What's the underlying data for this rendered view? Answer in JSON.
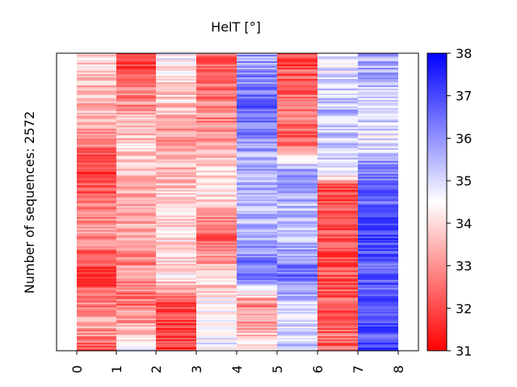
{
  "chart_data": {
    "type": "heatmap",
    "title": "HelT [°]",
    "ylabel": "Number of sequences: 2572",
    "xlabel": "",
    "x_ticks": [
      "0",
      "1",
      "2",
      "3",
      "4",
      "5",
      "6",
      "7",
      "8"
    ],
    "colorbar": {
      "ticks": [
        "38",
        "37",
        "36",
        "35",
        "34",
        "33",
        "32",
        "31"
      ],
      "range": [
        31,
        38
      ],
      "colormap": "bwr_r",
      "low_color": "#ff0000",
      "mid_color": "#ffffff",
      "high_color": "#0000ff"
    },
    "column_trends": [
      [
        [
          0,
          33.8
        ],
        [
          0.25,
          33.3
        ],
        [
          0.4,
          31.8
        ],
        [
          0.6,
          33.2
        ],
        [
          0.75,
          31.6
        ],
        [
          0.9,
          33.5
        ],
        [
          1,
          32.0
        ]
      ],
      [
        [
          0,
          31.8
        ],
        [
          0.3,
          33.8
        ],
        [
          0.6,
          33.2
        ],
        [
          0.85,
          32.6
        ],
        [
          0.95,
          33.8
        ],
        [
          1,
          35.6
        ]
      ],
      [
        [
          0,
          34.6
        ],
        [
          0.3,
          33.0
        ],
        [
          0.45,
          33.8
        ],
        [
          0.75,
          34.2
        ],
        [
          0.85,
          32.0
        ],
        [
          1,
          31.8
        ]
      ],
      [
        [
          0,
          32.2
        ],
        [
          0.3,
          33.0
        ],
        [
          0.45,
          34.4
        ],
        [
          0.6,
          32.2
        ],
        [
          0.85,
          34.6
        ],
        [
          1,
          34.6
        ]
      ],
      [
        [
          0,
          35.8
        ],
        [
          0.2,
          36.8
        ],
        [
          0.35,
          35.6
        ],
        [
          0.6,
          35.4
        ],
        [
          0.75,
          36.8
        ],
        [
          0.85,
          32.6
        ],
        [
          1,
          34.2
        ]
      ],
      [
        [
          0,
          31.8
        ],
        [
          0.2,
          32.8
        ],
        [
          0.3,
          32.2
        ],
        [
          0.4,
          36.0
        ],
        [
          0.6,
          35.2
        ],
        [
          0.75,
          36.6
        ],
        [
          0.85,
          34.8
        ],
        [
          1,
          35.2
        ]
      ],
      [
        [
          0,
          34.6
        ],
        [
          0.2,
          35.4
        ],
        [
          0.4,
          35.0
        ],
        [
          0.45,
          32.0
        ],
        [
          0.9,
          32.4
        ],
        [
          1,
          32.4
        ]
      ],
      [
        [
          0,
          35.6
        ],
        [
          0.3,
          34.8
        ],
        [
          0.4,
          36.4
        ],
        [
          0.6,
          37.0
        ],
        [
          0.85,
          36.6
        ],
        [
          1,
          37.2
        ]
      ]
    ]
  }
}
